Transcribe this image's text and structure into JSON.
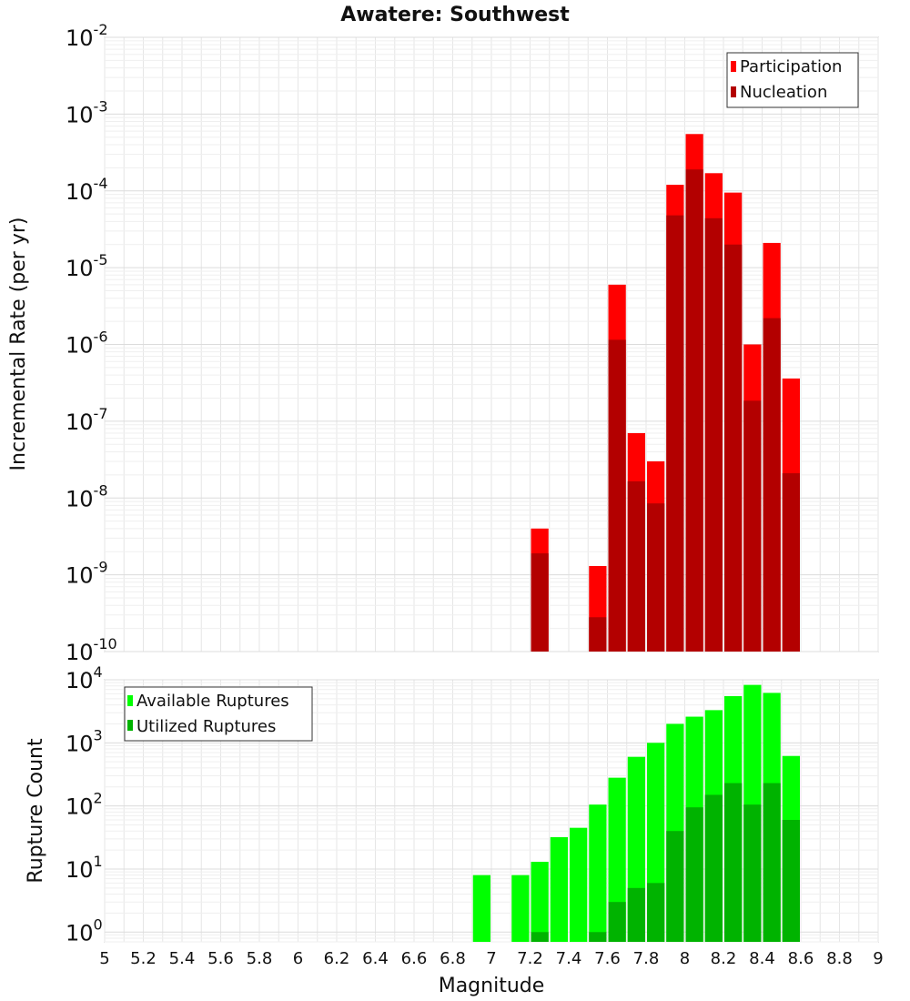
{
  "chart_data": [
    {
      "id": "rates",
      "type": "bar",
      "scale": "log",
      "title": "Awatere: Southwest",
      "xlabel": "",
      "ylabel": "Incremental Rate (per yr)",
      "xlim": [
        5,
        9
      ],
      "ylim": [
        1e-10,
        0.01
      ],
      "y_ticks": [
        {
          "base": "10",
          "exp": "-2"
        },
        {
          "base": "10",
          "exp": "-3"
        },
        {
          "base": "10",
          "exp": "-4"
        },
        {
          "base": "10",
          "exp": "-5"
        },
        {
          "base": "10",
          "exp": "-6"
        },
        {
          "base": "10",
          "exp": "-7"
        },
        {
          "base": "10",
          "exp": "-8"
        },
        {
          "base": "10",
          "exp": "-9"
        },
        {
          "base": "10",
          "exp": "-10"
        }
      ],
      "legend_position": "top-right",
      "categories": [
        7.25,
        7.55,
        7.65,
        7.75,
        7.85,
        7.95,
        8.05,
        8.15,
        8.25,
        8.35,
        8.45,
        8.55
      ],
      "series": [
        {
          "name": "Participation",
          "color": "#ff0000",
          "values": [
            4e-09,
            1.3e-09,
            6e-06,
            7e-08,
            3e-08,
            0.00012,
            0.00055,
            0.00017,
            9.5e-05,
            1e-06,
            2.1e-05,
            3.6e-07
          ]
        },
        {
          "name": "Nucleation",
          "color": "#b30000",
          "values": [
            1.9e-09,
            2.8e-10,
            1.15e-06,
            1.65e-08,
            8.5e-09,
            4.8e-05,
            0.00019,
            4.4e-05,
            2e-05,
            1.85e-07,
            2.2e-06,
            2.1e-08
          ]
        }
      ]
    },
    {
      "id": "counts",
      "type": "bar",
      "scale": "log",
      "title": "",
      "xlabel": "Magnitude",
      "ylabel": "Rupture Count",
      "xlim": [
        5,
        9
      ],
      "ylim": [
        0.7,
        10000
      ],
      "y_ticks": [
        {
          "base": "10",
          "exp": "4",
          "value": 10000
        },
        {
          "base": "10",
          "exp": "3",
          "value": 1000
        },
        {
          "base": "10",
          "exp": "2",
          "value": 100
        },
        {
          "base": "10",
          "exp": "1",
          "value": 10
        },
        {
          "base": "10",
          "exp": "0",
          "value": 1
        }
      ],
      "x_ticks": [
        "5",
        "5.2",
        "5.4",
        "5.6",
        "5.8",
        "6",
        "6.2",
        "6.4",
        "6.6",
        "6.8",
        "7",
        "7.2",
        "7.4",
        "7.6",
        "7.8",
        "8",
        "8.2",
        "8.4",
        "8.6",
        "8.8",
        "9"
      ],
      "legend_position": "top-left",
      "categories": [
        6.95,
        7.15,
        7.25,
        7.35,
        7.45,
        7.55,
        7.65,
        7.75,
        7.85,
        7.95,
        8.05,
        8.15,
        8.25,
        8.35,
        8.45,
        8.55
      ],
      "series": [
        {
          "name": "Available Ruptures",
          "color": "#00ff00",
          "values": [
            8,
            8,
            13,
            32,
            45,
            105,
            280,
            600,
            1000,
            2000,
            2600,
            3300,
            5500,
            8300,
            6200,
            620
          ]
        },
        {
          "name": "Utilized Ruptures",
          "color": "#00b300",
          "values": [
            null,
            null,
            1,
            null,
            null,
            1,
            3,
            5,
            6,
            40,
            95,
            150,
            230,
            105,
            230,
            60
          ]
        }
      ]
    }
  ]
}
